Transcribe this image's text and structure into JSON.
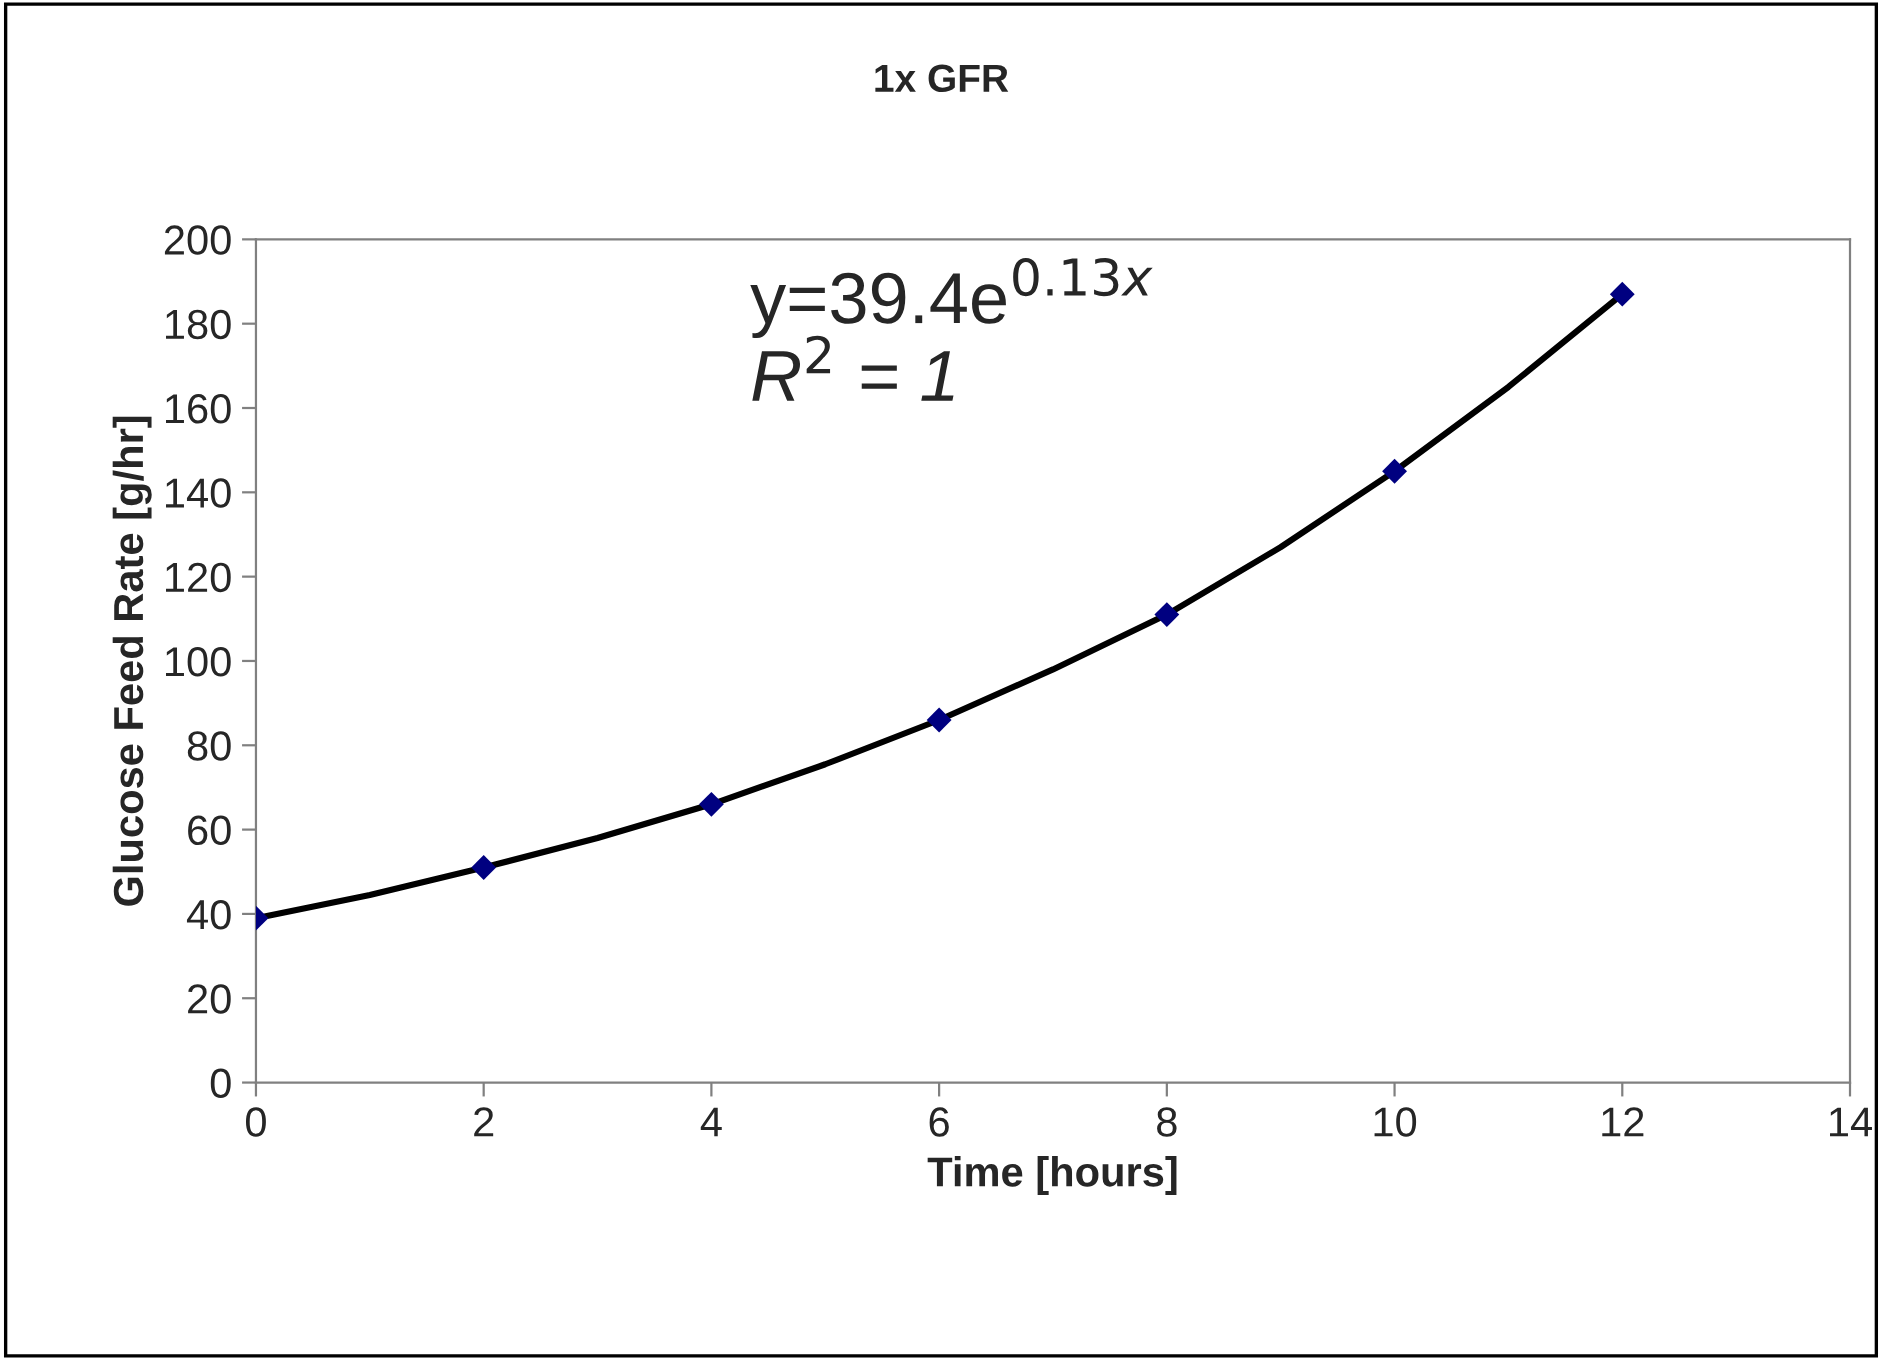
{
  "chart_data": {
    "type": "scatter",
    "title": "1x GFR",
    "xlabel": "Time [hours]",
    "ylabel": "Glucose Feed Rate [g/hr]",
    "x": [
      0,
      2,
      4,
      6,
      8,
      10,
      12
    ],
    "series": [
      {
        "color": "#000080",
        "marker": "diamond",
        "values": [
          39,
          51,
          66,
          86,
          111,
          145,
          187
        ]
      },
      {
        "type": "line",
        "color": "#000000",
        "x": [
          0,
          1,
          2,
          3,
          4,
          5,
          6,
          7,
          8,
          9,
          10,
          11,
          12
        ],
        "values": [
          39,
          44.5,
          51,
          58,
          66,
          75.5,
          86,
          98,
          111,
          127,
          145,
          165,
          187
        ]
      }
    ],
    "annotations": [
      "y=39.4e$^{0.13x}$",
      "R$^{2}$ = 1"
    ],
    "xlim": [
      0,
      14
    ],
    "xticks": [
      0,
      2,
      4,
      6,
      8,
      10,
      12,
      14
    ],
    "ylim": [
      0,
      200
    ],
    "yticks": [
      0,
      20,
      40,
      60,
      80,
      100,
      120,
      140,
      160,
      180,
      200
    ],
    "grid": false,
    "legend": false
  }
}
